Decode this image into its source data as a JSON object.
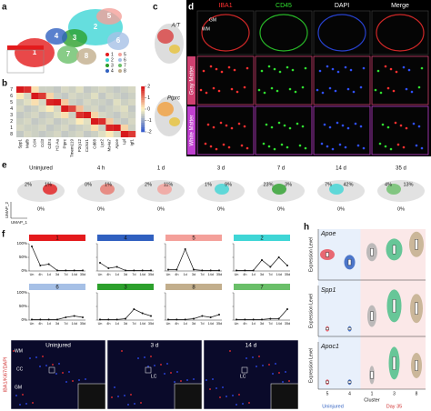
{
  "panel_labels": [
    "a",
    "b",
    "c",
    "d",
    "e",
    "f",
    "g",
    "h"
  ],
  "a": {
    "clusters": [
      "1",
      "2",
      "3",
      "4",
      "5",
      "6",
      "7",
      "8"
    ],
    "colors": [
      "#e41a1c",
      "#3fd6d6",
      "#2ca02c",
      "#3060c0",
      "#f4a09a",
      "#a6c0e6",
      "#6abf69",
      "#c2ae8c"
    ]
  },
  "b": {
    "rows": [
      "7",
      "6",
      "5",
      "4",
      "3",
      "2",
      "1",
      "8"
    ],
    "genes": [
      "Spp1",
      "Mafb",
      "Ccl4",
      "Ccl3",
      "Cd74",
      "H2-Aa",
      "Ptprc",
      "Tmem119",
      "P2ry12",
      "Cx3cr1",
      "Cd68",
      "Lyz2",
      "Ms4a7",
      "Apoe",
      "Lpl",
      "Igf1"
    ],
    "values": [
      [
        2,
        1.8,
        0.2,
        -0.5,
        -0.5,
        -0.6,
        -0.4,
        -0.5,
        -0.3,
        -0.6,
        -0.5,
        -0.4,
        -0.5,
        -0.6,
        -0.5,
        -0.4
      ],
      [
        0.1,
        -0.4,
        2,
        1.7,
        0.3,
        -0.5,
        -0.6,
        -0.4,
        -0.5,
        -0.5,
        -0.3,
        -0.6,
        -0.4,
        -0.5,
        -0.6,
        -0.5
      ],
      [
        -0.5,
        -0.3,
        0.2,
        -0.4,
        1.9,
        2,
        0.4,
        -0.5,
        -0.6,
        -0.4,
        -0.5,
        -0.5,
        -0.6,
        -0.3,
        -0.5,
        -0.4
      ],
      [
        -0.4,
        -0.6,
        -0.5,
        -0.3,
        0.1,
        -0.4,
        2,
        1.6,
        0.5,
        -0.5,
        -0.4,
        -0.6,
        -0.5,
        -0.4,
        -0.3,
        -0.6
      ],
      [
        -0.6,
        -0.5,
        -0.4,
        -0.6,
        -0.5,
        -0.3,
        0.2,
        -0.5,
        1.8,
        2,
        0.3,
        -0.4,
        -0.5,
        -0.6,
        -0.4,
        -0.5
      ],
      [
        -0.5,
        -0.4,
        -0.6,
        -0.5,
        -0.4,
        -0.6,
        -0.5,
        -0.4,
        0.1,
        -0.3,
        2,
        1.8,
        0.4,
        -0.5,
        -0.6,
        -0.4
      ],
      [
        -0.4,
        -0.5,
        -0.5,
        -0.4,
        -0.6,
        -0.5,
        -0.4,
        -0.6,
        -0.5,
        -0.4,
        0.2,
        -0.5,
        1.9,
        2,
        0.3,
        -0.5
      ],
      [
        -0.6,
        -0.4,
        -0.5,
        -0.6,
        -0.5,
        -0.4,
        -0.6,
        -0.5,
        -0.4,
        -0.6,
        -0.5,
        -0.3,
        0.1,
        -0.4,
        2,
        1.7
      ]
    ],
    "colorbar_ticks": [
      2,
      1,
      0,
      -1,
      -2
    ]
  },
  "c": {
    "labels": [
      "A/T",
      "Ptprc"
    ]
  },
  "d": {
    "channels": [
      "IBA1",
      "CD45",
      "DAPI",
      "Merge"
    ],
    "channel_colors": [
      "#ff3030",
      "#30e030",
      "#ffffff",
      "#ffffff"
    ],
    "rows": [
      "Gray Matter",
      "White Matter"
    ],
    "regions": [
      "GM",
      "WM"
    ]
  },
  "e": {
    "timepoints": [
      "Uninjured",
      "4 h",
      "1 d",
      "3 d",
      "7 d",
      "14 d",
      "35 d"
    ],
    "percentages": [
      [
        "2%",
        "1%",
        "0%"
      ],
      [
        "0%",
        "1%",
        "0%"
      ],
      [
        "2%",
        "11%",
        "0%"
      ],
      [
        "1%",
        "9%",
        "0%"
      ],
      [
        "23%",
        "3%",
        "0%"
      ],
      [
        "7%",
        "42%",
        "0%"
      ],
      [
        "4%",
        "13%",
        "0%"
      ]
    ],
    "axes": [
      "UMAP_1",
      "UMAP_2"
    ]
  },
  "f": {
    "xticks": [
      "Un",
      "4h",
      "1d",
      "3d",
      "7d",
      "14d",
      "35d"
    ],
    "ylim": [
      0,
      100
    ],
    "yticks": [
      {
        "value": 0,
        "label": "0%"
      },
      {
        "value": 50,
        "label": "50%"
      },
      {
        "value": 100,
        "label": "100%"
      }
    ],
    "series": [
      {
        "name": "1",
        "color": "#e41a1c",
        "values": [
          90,
          20,
          25,
          2,
          2,
          2,
          2
        ]
      },
      {
        "name": "4",
        "color": "#3060c0",
        "values": [
          30,
          10,
          15,
          2,
          2,
          2,
          2
        ]
      },
      {
        "name": "5",
        "color": "#f4a09a",
        "values": [
          5,
          5,
          80,
          5,
          2,
          2,
          2
        ]
      },
      {
        "name": "2",
        "color": "#3fd6d6",
        "values": [
          2,
          2,
          2,
          40,
          15,
          50,
          20
        ]
      },
      {
        "name": "6",
        "color": "#a6c0e6",
        "values": [
          2,
          2,
          2,
          2,
          10,
          15,
          10
        ]
      },
      {
        "name": "3",
        "color": "#2ca02c",
        "values": [
          2,
          2,
          2,
          5,
          40,
          25,
          15
        ]
      },
      {
        "name": "8",
        "color": "#c2ae8c",
        "values": [
          2,
          2,
          2,
          5,
          15,
          10,
          20
        ]
      },
      {
        "name": "7",
        "color": "#6abf69",
        "values": [
          2,
          2,
          2,
          2,
          5,
          5,
          40
        ]
      }
    ]
  },
  "g": {
    "timepoints": [
      "Uninjured",
      "3 d",
      "14 d"
    ],
    "regions": [
      "WM",
      "CC",
      "GM",
      "LC"
    ],
    "stain": "IBA1/Ki67/DAPI"
  },
  "h": {
    "genes": [
      "Apoe",
      "Spp1",
      "Apoc1"
    ],
    "ylabel": "Expression Level",
    "xlabel": "Cluster",
    "clusters": [
      "5",
      "4",
      "1",
      "3",
      "8"
    ],
    "cluster_colors": [
      "#e8505a",
      "#3060c0",
      "#b0b0b0",
      "#4cc08a",
      "#c2ae8c"
    ],
    "groups": [
      "Uninjured",
      "Day 35"
    ]
  }
}
